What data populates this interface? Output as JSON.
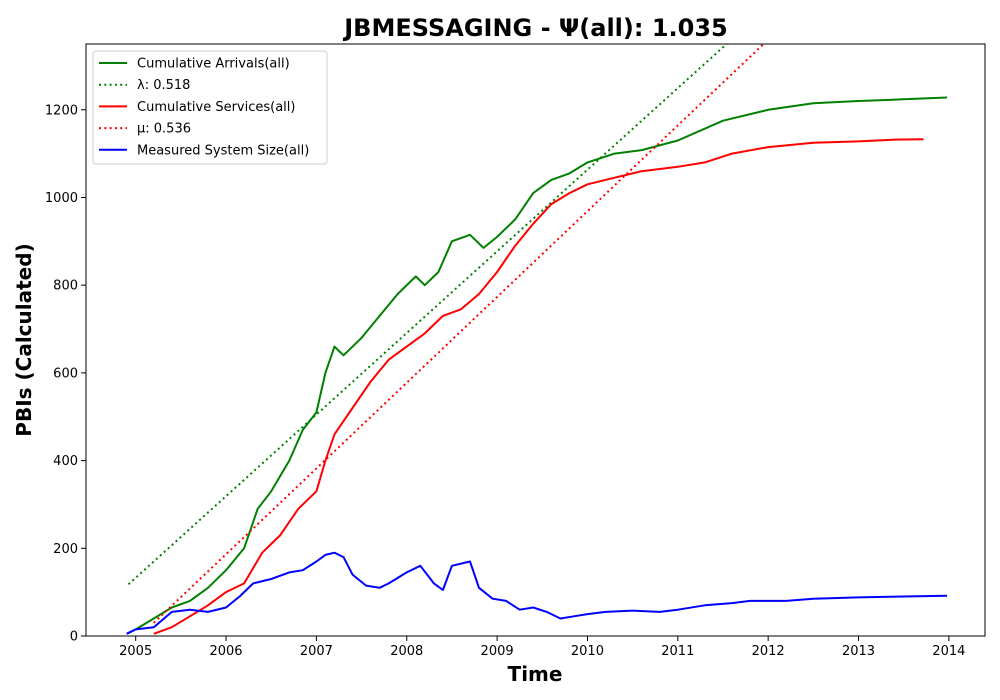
{
  "chart_data": {
    "type": "line",
    "title": "JBMESSAGING -  Ψ(all): 1.035",
    "xlabel": "Time",
    "ylabel": "PBIs (Calculated)",
    "xlim": [
      2004.45,
      2014.4
    ],
    "ylim": [
      0,
      1350
    ],
    "x_ticks": [
      2005,
      2006,
      2007,
      2008,
      2009,
      2010,
      2011,
      2012,
      2013,
      2014
    ],
    "y_ticks": [
      0,
      200,
      400,
      600,
      800,
      1000,
      1200
    ],
    "grid": false,
    "legend_position": "top-left",
    "series": [
      {
        "name": "Cumulative Arrivals(all)",
        "color": "#008000",
        "style": "solid",
        "x": [
          2004.9,
          2005.0,
          2005.2,
          2005.4,
          2005.6,
          2005.8,
          2006.0,
          2006.2,
          2006.35,
          2006.5,
          2006.7,
          2006.85,
          2007.0,
          2007.1,
          2007.2,
          2007.3,
          2007.5,
          2007.7,
          2007.9,
          2008.1,
          2008.2,
          2008.35,
          2008.5,
          2008.7,
          2008.85,
          2009.0,
          2009.2,
          2009.4,
          2009.6,
          2009.8,
          2010.0,
          2010.3,
          2010.6,
          2011.0,
          2011.5,
          2012.0,
          2012.5,
          2013.0,
          2013.5,
          2013.98
        ],
        "y": [
          5,
          15,
          40,
          65,
          80,
          110,
          150,
          200,
          290,
          330,
          400,
          470,
          510,
          600,
          660,
          640,
          680,
          730,
          780,
          820,
          800,
          830,
          900,
          915,
          885,
          910,
          950,
          1010,
          1040,
          1055,
          1080,
          1100,
          1108,
          1130,
          1175,
          1200,
          1215,
          1220,
          1224,
          1228
        ]
      },
      {
        "name": "λ: 0.518",
        "color": "#008000",
        "style": "dotted",
        "x": [
          2004.92,
          2011.54
        ],
        "y": [
          118,
          1350
        ]
      },
      {
        "name": "Cumulative Services(all)",
        "color": "#ff0000",
        "style": "solid",
        "x": [
          2005.2,
          2005.4,
          2005.6,
          2005.8,
          2006.0,
          2006.2,
          2006.4,
          2006.6,
          2006.8,
          2007.0,
          2007.1,
          2007.2,
          2007.4,
          2007.6,
          2007.8,
          2008.0,
          2008.2,
          2008.4,
          2008.6,
          2008.8,
          2009.0,
          2009.2,
          2009.4,
          2009.6,
          2009.8,
          2010.0,
          2010.3,
          2010.6,
          2011.0,
          2011.3,
          2011.6,
          2012.0,
          2012.5,
          2013.0,
          2013.4,
          2013.72
        ],
        "y": [
          5,
          20,
          45,
          70,
          100,
          120,
          190,
          230,
          290,
          330,
          400,
          460,
          520,
          580,
          630,
          660,
          690,
          730,
          745,
          780,
          830,
          890,
          940,
          985,
          1010,
          1030,
          1045,
          1060,
          1070,
          1080,
          1100,
          1115,
          1125,
          1128,
          1132,
          1133
        ]
      },
      {
        "name": "μ: 0.536",
        "color": "#ff0000",
        "style": "dotted",
        "x": [
          2005.2,
          2011.95
        ],
        "y": [
          30,
          1350
        ]
      },
      {
        "name": "Measured System Size(all)",
        "color": "#0000ff",
        "style": "solid",
        "x": [
          2004.9,
          2005.0,
          2005.2,
          2005.4,
          2005.6,
          2005.8,
          2006.0,
          2006.15,
          2006.3,
          2006.5,
          2006.7,
          2006.85,
          2007.0,
          2007.1,
          2007.2,
          2007.3,
          2007.4,
          2007.55,
          2007.7,
          2007.8,
          2008.0,
          2008.15,
          2008.3,
          2008.4,
          2008.5,
          2008.7,
          2008.8,
          2008.95,
          2009.1,
          2009.25,
          2009.4,
          2009.55,
          2009.7,
          2009.85,
          2010.0,
          2010.2,
          2010.5,
          2010.8,
          2011.0,
          2011.3,
          2011.6,
          2011.8,
          2012.2,
          2012.5,
          2013.0,
          2013.5,
          2013.98
        ],
        "y": [
          5,
          15,
          20,
          55,
          60,
          55,
          65,
          90,
          120,
          130,
          145,
          150,
          170,
          185,
          190,
          180,
          140,
          115,
          110,
          120,
          145,
          160,
          120,
          105,
          160,
          170,
          110,
          85,
          80,
          60,
          65,
          55,
          40,
          45,
          50,
          55,
          58,
          55,
          60,
          70,
          75,
          80,
          80,
          85,
          88,
          90,
          92
        ]
      }
    ]
  }
}
